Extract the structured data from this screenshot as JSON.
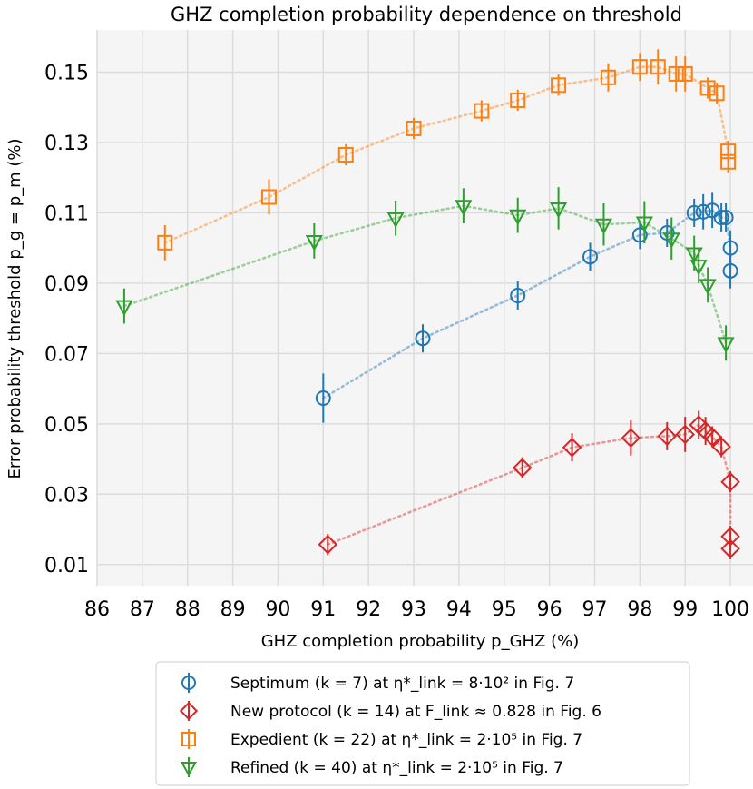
{
  "chart_data": {
    "type": "scatter",
    "title": "GHZ completion probability dependence on threshold",
    "xlabel": "GHZ completion probability p_GHZ (%)",
    "ylabel": "Error probability threshold p_g = p_m (%)",
    "xlim": [
      86,
      100.5
    ],
    "ylim": [
      0.004,
      0.162
    ],
    "x_ticks": [
      "86",
      "87",
      "88",
      "89",
      "90",
      "91",
      "92",
      "93",
      "94",
      "95",
      "96",
      "97",
      "98",
      "99",
      "100"
    ],
    "y_ticks": [
      "0.01",
      "0.03",
      "0.05",
      "0.07",
      "0.09",
      "0.11",
      "0.13",
      "0.15"
    ],
    "grid": true,
    "legend_position": "bottom-center",
    "series": [
      {
        "name": "Septimum (k = 7) at η*_link = 8·10² in Fig. 7",
        "color": "#1f77b4",
        "marker": "circle",
        "points": [
          {
            "x": 91.0,
            "y": 0.0573,
            "err": 0.007
          },
          {
            "x": 93.2,
            "y": 0.0743,
            "err": 0.004
          },
          {
            "x": 95.3,
            "y": 0.0865,
            "err": 0.004
          },
          {
            "x": 96.9,
            "y": 0.0975,
            "err": 0.004
          },
          {
            "x": 98.0,
            "y": 0.1037,
            "err": 0.004
          },
          {
            "x": 98.6,
            "y": 0.1043,
            "err": 0.004
          },
          {
            "x": 99.2,
            "y": 0.11,
            "err": 0.004
          },
          {
            "x": 99.4,
            "y": 0.1103,
            "err": 0.005
          },
          {
            "x": 99.6,
            "y": 0.1107,
            "err": 0.005
          },
          {
            "x": 99.8,
            "y": 0.1087,
            "err": 0.004
          },
          {
            "x": 99.9,
            "y": 0.1087,
            "err": 0.004
          },
          {
            "x": 100.0,
            "y": 0.1,
            "err": 0.005
          },
          {
            "x": 100.0,
            "y": 0.0935,
            "err": 0.005
          }
        ]
      },
      {
        "name": "New protocol (k = 14) at F_link ≈ 0.828 in Fig. 6",
        "color": "#d62728",
        "marker": "diamond",
        "points": [
          {
            "x": 91.1,
            "y": 0.0157,
            "err": 0.003
          },
          {
            "x": 95.4,
            "y": 0.0375,
            "err": 0.003
          },
          {
            "x": 96.5,
            "y": 0.0433,
            "err": 0.004
          },
          {
            "x": 97.8,
            "y": 0.046,
            "err": 0.005
          },
          {
            "x": 98.6,
            "y": 0.0465,
            "err": 0.004
          },
          {
            "x": 99.0,
            "y": 0.047,
            "err": 0.005
          },
          {
            "x": 99.3,
            "y": 0.0497,
            "err": 0.004
          },
          {
            "x": 99.45,
            "y": 0.048,
            "err": 0.004
          },
          {
            "x": 99.6,
            "y": 0.0463,
            "err": 0.003
          },
          {
            "x": 99.8,
            "y": 0.0435,
            "err": 0.003
          },
          {
            "x": 100.0,
            "y": 0.0335,
            "err": 0.003
          },
          {
            "x": 100.0,
            "y": 0.018,
            "err": 0.003
          },
          {
            "x": 100.0,
            "y": 0.0145,
            "err": 0.003
          }
        ]
      },
      {
        "name": "Expedient (k = 22) at η*_link = 2·10⁵ in Fig. 7",
        "color": "#ff7f0e",
        "marker": "square",
        "points": [
          {
            "x": 87.5,
            "y": 0.1015,
            "err": 0.005
          },
          {
            "x": 89.8,
            "y": 0.1145,
            "err": 0.005
          },
          {
            "x": 91.5,
            "y": 0.1265,
            "err": 0.003
          },
          {
            "x": 93.0,
            "y": 0.134,
            "err": 0.003
          },
          {
            "x": 94.5,
            "y": 0.139,
            "err": 0.003
          },
          {
            "x": 95.3,
            "y": 0.142,
            "err": 0.003
          },
          {
            "x": 96.2,
            "y": 0.1463,
            "err": 0.003
          },
          {
            "x": 97.3,
            "y": 0.1485,
            "err": 0.004
          },
          {
            "x": 98.0,
            "y": 0.1515,
            "err": 0.004
          },
          {
            "x": 98.4,
            "y": 0.1515,
            "err": 0.005
          },
          {
            "x": 98.8,
            "y": 0.1495,
            "err": 0.005
          },
          {
            "x": 99.0,
            "y": 0.1495,
            "err": 0.005
          },
          {
            "x": 99.5,
            "y": 0.1455,
            "err": 0.003
          },
          {
            "x": 99.7,
            "y": 0.144,
            "err": 0.003
          },
          {
            "x": 99.95,
            "y": 0.1275,
            "err": 0.003
          },
          {
            "x": 99.95,
            "y": 0.1245,
            "err": 0.003
          }
        ]
      },
      {
        "name": "Refined (k = 40) at η*_link = 2·10⁵ in Fig. 7",
        "color": "#2ca02c",
        "marker": "triangle-down",
        "points": [
          {
            "x": 86.6,
            "y": 0.0835,
            "err": 0.005
          },
          {
            "x": 90.8,
            "y": 0.102,
            "err": 0.005
          },
          {
            "x": 92.6,
            "y": 0.1085,
            "err": 0.005
          },
          {
            "x": 94.1,
            "y": 0.112,
            "err": 0.005
          },
          {
            "x": 95.3,
            "y": 0.1093,
            "err": 0.005
          },
          {
            "x": 96.2,
            "y": 0.1113,
            "err": 0.006
          },
          {
            "x": 97.2,
            "y": 0.1067,
            "err": 0.006
          },
          {
            "x": 98.1,
            "y": 0.1073,
            "err": 0.006
          },
          {
            "x": 98.7,
            "y": 0.1027,
            "err": 0.006
          },
          {
            "x": 99.2,
            "y": 0.0985,
            "err": 0.005
          },
          {
            "x": 99.3,
            "y": 0.095,
            "err": 0.005
          },
          {
            "x": 99.5,
            "y": 0.0895,
            "err": 0.005
          },
          {
            "x": 99.9,
            "y": 0.073,
            "err": 0.005
          }
        ]
      }
    ]
  }
}
